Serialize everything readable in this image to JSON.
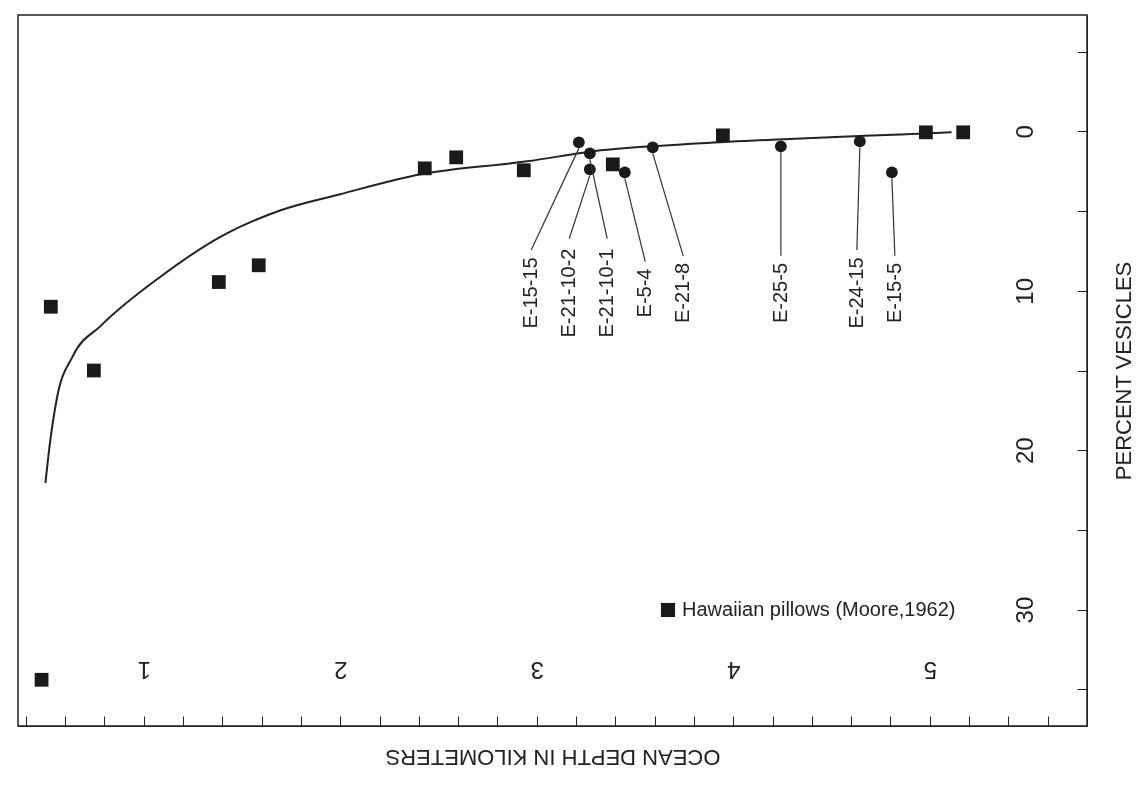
{
  "chart_data": {
    "type": "scatter",
    "xlabel": "OCEAN DEPTH IN KILOMETERS",
    "ylabel": "PERCENT VESICLES",
    "xlim": [
      0.36,
      5.8
    ],
    "ylim": [
      37.3,
      -7.3
    ],
    "xticks": [
      {
        "value": 0.4,
        "label": null
      },
      {
        "value": 0.6,
        "label": null
      },
      {
        "value": 0.8,
        "label": null
      },
      1,
      {
        "value": 1.2,
        "label": null
      },
      {
        "value": 1.4,
        "label": null
      },
      {
        "value": 1.6,
        "label": null
      },
      {
        "value": 1.8,
        "label": null
      },
      2,
      {
        "value": 2.2,
        "label": null
      },
      {
        "value": 2.4,
        "label": null
      },
      {
        "value": 2.6,
        "label": null
      },
      {
        "value": 2.8,
        "label": null
      },
      3,
      {
        "value": 3.2,
        "label": null
      },
      {
        "value": 3.4,
        "label": null
      },
      {
        "value": 3.6,
        "label": null
      },
      {
        "value": 3.8,
        "label": null
      },
      4,
      {
        "value": 4.2,
        "label": null
      },
      {
        "value": 4.4,
        "label": null
      },
      {
        "value": 4.6,
        "label": null
      },
      {
        "value": 4.8,
        "label": null
      },
      5,
      {
        "value": 5.2,
        "label": null
      },
      {
        "value": 5.4,
        "label": null
      },
      {
        "value": 5.6,
        "label": null
      }
    ],
    "yticks": [
      {
        "value": -5,
        "label": null
      },
      0,
      {
        "value": 5,
        "label": null
      },
      10,
      {
        "value": 15,
        "label": null
      },
      20,
      {
        "value": 25,
        "label": null
      },
      30,
      {
        "value": 35,
        "label": null
      }
    ],
    "grid": false,
    "legend": "bottom right",
    "series": [
      {
        "type": "line",
        "color": "#222222",
        "line_style": "solid",
        "x": [
          0.5,
          0.517,
          0.557,
          0.639,
          0.781,
          1.087,
          1.392,
          1.697,
          2.0,
          2.41,
          2.95,
          3.326,
          3.835,
          4.344,
          4.85,
          5.107
        ],
        "values": [
          22.0,
          20.1,
          16.8,
          14.1,
          12.2,
          9.1,
          6.6,
          4.95,
          3.94,
          2.69,
          1.88,
          1.19,
          0.75,
          0.44,
          0.19,
          0.06
        ]
      },
      {
        "name": "Hawaiian pillows (Moore,1962)",
        "color": "#1a1a1a",
        "marker": "square",
        "x": [
          0.48,
          0.527,
          0.746,
          1.382,
          1.585,
          2.43,
          2.59,
          2.934,
          3.387,
          3.947,
          4.98,
          5.17
        ],
        "values": [
          34.4,
          11.0,
          15.0,
          9.45,
          8.4,
          2.32,
          1.63,
          2.44,
          2.07,
          0.25,
          0.06,
          0.06
        ]
      },
      {
        "color": "#1a1a1a",
        "marker": "circle",
        "x": [
          3.214,
          3.27,
          3.27,
          3.448,
          3.59,
          4.242,
          4.644,
          4.807
        ],
        "values": [
          0.69,
          1.38,
          2.38,
          2.57,
          1.0,
          0.94,
          0.63,
          2.57
        ]
      }
    ],
    "annotations": [
      {
        "text": "E-15-15",
        "x": 3.214,
        "y": 0.69
      },
      {
        "text": "E-21-10-2",
        "x": 3.27,
        "y": 2.38
      },
      {
        "text": "E-21-10-1",
        "x": 3.27,
        "y": 1.38
      },
      {
        "text": "E-5-4",
        "x": 3.448,
        "y": 2.57
      },
      {
        "text": "E-21-8",
        "x": 3.59,
        "y": 1.0
      },
      {
        "text": "E-25-5",
        "x": 4.242,
        "y": 0.94
      },
      {
        "text": "E-24-15",
        "x": 4.644,
        "y": 0.63
      },
      {
        "text": "E-15-5",
        "x": 4.807,
        "y": 2.57
      }
    ]
  }
}
